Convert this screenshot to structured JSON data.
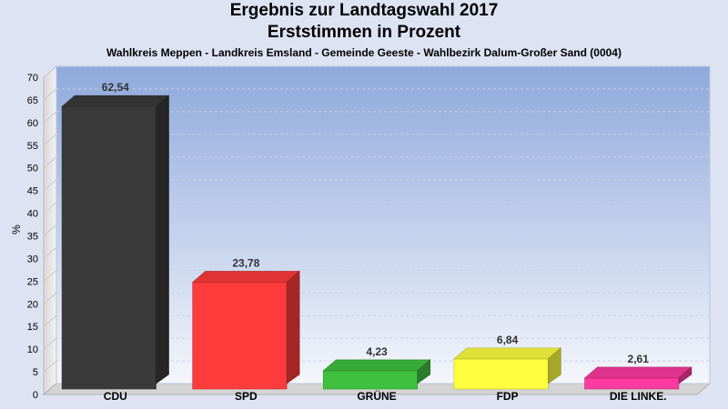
{
  "chart_data": {
    "type": "bar",
    "title": "Ergebnis zur Landtagswahl 2017",
    "title2": "Erststimmen in Prozent",
    "subtitle": "Wahlkreis Meppen - Landkreis Emsland - Gemeinde Geeste - Wahlbezirk Dalum-Großer Sand (0004)",
    "ylabel": "%",
    "xlabel": "",
    "ylim": [
      0,
      70
    ],
    "ytick_step": 5,
    "grid": true,
    "categories": [
      "CDU",
      "SPD",
      "GRÜNE",
      "FDP",
      "DIE LINKE."
    ],
    "values": [
      62.54,
      23.78,
      4.23,
      6.84,
      2.61
    ],
    "value_labels": [
      "62,54",
      "23,78",
      "4,23",
      "6,84",
      "2,61"
    ],
    "colors": [
      "#3a3a3a",
      "#ff3b3b",
      "#3fc13f",
      "#ffff40",
      "#ff3aa0"
    ]
  }
}
